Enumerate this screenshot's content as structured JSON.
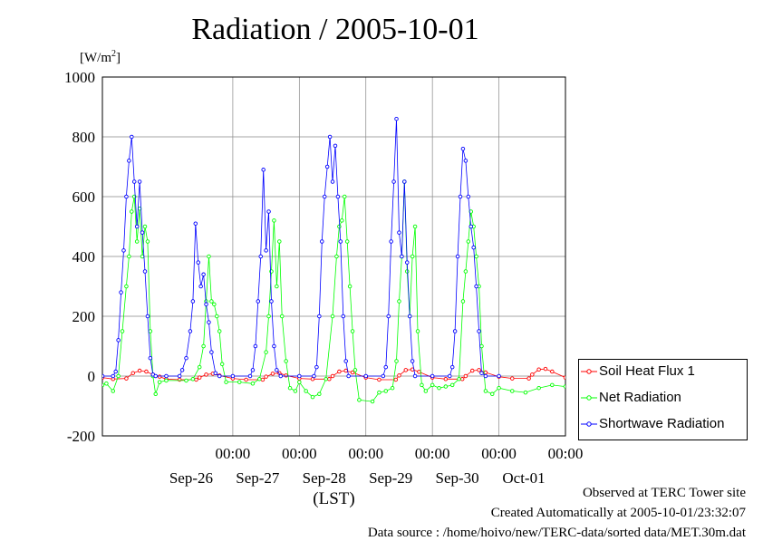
{
  "header": {
    "title": "Radiation / 2005-10-01",
    "unit_prefix": "[W/m",
    "unit_power": "2",
    "unit_suffix": "]"
  },
  "footer": {
    "line1": "Observed at TERC Tower site",
    "line2": "Created Automatically at 2005-10-01/23:32:07",
    "line3": "Data source : /home/hoivo/new/TERC-data/sorted  data/MET.30m.dat"
  },
  "legend": {
    "items": [
      {
        "label": "Soil Heat Flux 1",
        "color": "#ff0000"
      },
      {
        "label": "Net Radiation",
        "color": "#00ff00"
      },
      {
        "label": "Shortwave Radiation",
        "color": "#0000ff"
      }
    ]
  },
  "chart_data": {
    "type": "line",
    "title": "Radiation / 2005-10-01",
    "xlabel": "(LST)",
    "ylabel": "[W/m2]",
    "ylim": [
      -200,
      1000
    ],
    "yticks": [
      -200,
      0,
      200,
      400,
      600,
      800,
      1000
    ],
    "xlim": [
      -0.96,
      6.0
    ],
    "xtick_time_label": "00:00",
    "xticks": [
      {
        "x": 1,
        "time": "00:00",
        "date": "Sep-26"
      },
      {
        "x": 2,
        "time": "00:00",
        "date": "Sep-27"
      },
      {
        "x": 3,
        "time": "00:00",
        "date": "Sep-28"
      },
      {
        "x": 4,
        "time": "00:00",
        "date": "Sep-29"
      },
      {
        "x": 5,
        "time": "00:00",
        "date": "Sep-30"
      },
      {
        "x": 6,
        "time": "00:00",
        "date": "Oct-01"
      }
    ],
    "grid": true,
    "legend_position": "bottom-right",
    "series": [
      {
        "name": "Soil Heat Flux 1",
        "color": "#ff0000",
        "points": [
          [
            -0.96,
            -5
          ],
          [
            -0.8,
            -10
          ],
          [
            -0.6,
            -8
          ],
          [
            -0.5,
            10
          ],
          [
            -0.4,
            18
          ],
          [
            -0.3,
            15
          ],
          [
            -0.2,
            5
          ],
          [
            -0.1,
            -2
          ],
          [
            0.0,
            -10
          ],
          [
            0.2,
            -12
          ],
          [
            0.45,
            -12
          ],
          [
            0.5,
            -5
          ],
          [
            0.6,
            5
          ],
          [
            0.7,
            8
          ],
          [
            0.8,
            2
          ],
          [
            1.0,
            -8
          ],
          [
            1.2,
            -12
          ],
          [
            1.45,
            -12
          ],
          [
            1.5,
            -2
          ],
          [
            1.6,
            8
          ],
          [
            1.7,
            10
          ],
          [
            1.8,
            2
          ],
          [
            2.0,
            -8
          ],
          [
            2.2,
            -10
          ],
          [
            2.45,
            -10
          ],
          [
            2.5,
            0
          ],
          [
            2.6,
            15
          ],
          [
            2.7,
            18
          ],
          [
            2.8,
            12
          ],
          [
            3.0,
            -5
          ],
          [
            3.2,
            -12
          ],
          [
            3.45,
            -12
          ],
          [
            3.5,
            2
          ],
          [
            3.6,
            20
          ],
          [
            3.7,
            22
          ],
          [
            3.8,
            14
          ],
          [
            4.0,
            -5
          ],
          [
            4.2,
            -10
          ],
          [
            4.45,
            -10
          ],
          [
            4.5,
            0
          ],
          [
            4.6,
            18
          ],
          [
            4.7,
            20
          ],
          [
            4.8,
            12
          ],
          [
            5.0,
            -2
          ],
          [
            5.2,
            -8
          ],
          [
            5.45,
            -8
          ],
          [
            5.5,
            5
          ],
          [
            5.6,
            22
          ],
          [
            5.7,
            24
          ],
          [
            5.8,
            15
          ],
          [
            6.0,
            -5
          ]
        ]
      },
      {
        "name": "Net Radiation",
        "color": "#00ff00",
        "points": [
          [
            -0.96,
            -30
          ],
          [
            -0.9,
            -25
          ],
          [
            -0.8,
            -50
          ],
          [
            -0.72,
            0
          ],
          [
            -0.66,
            150
          ],
          [
            -0.6,
            300
          ],
          [
            -0.56,
            400
          ],
          [
            -0.52,
            550
          ],
          [
            -0.48,
            600
          ],
          [
            -0.44,
            450
          ],
          [
            -0.4,
            560
          ],
          [
            -0.36,
            400
          ],
          [
            -0.32,
            500
          ],
          [
            -0.28,
            450
          ],
          [
            -0.24,
            150
          ],
          [
            -0.2,
            0
          ],
          [
            -0.16,
            -60
          ],
          [
            -0.1,
            -20
          ],
          [
            0.0,
            -15
          ],
          [
            0.3,
            -15
          ],
          [
            0.4,
            -10
          ],
          [
            0.5,
            30
          ],
          [
            0.56,
            100
          ],
          [
            0.6,
            250
          ],
          [
            0.64,
            400
          ],
          [
            0.68,
            250
          ],
          [
            0.72,
            240
          ],
          [
            0.76,
            200
          ],
          [
            0.8,
            150
          ],
          [
            0.84,
            40
          ],
          [
            0.9,
            -20
          ],
          [
            1.1,
            -20
          ],
          [
            1.3,
            -25
          ],
          [
            1.4,
            -10
          ],
          [
            1.5,
            80
          ],
          [
            1.54,
            200
          ],
          [
            1.58,
            350
          ],
          [
            1.62,
            520
          ],
          [
            1.66,
            300
          ],
          [
            1.7,
            450
          ],
          [
            1.74,
            200
          ],
          [
            1.8,
            50
          ],
          [
            1.86,
            -40
          ],
          [
            1.94,
            -50
          ],
          [
            2.0,
            -20
          ],
          [
            2.1,
            -50
          ],
          [
            2.2,
            -70
          ],
          [
            2.3,
            -60
          ],
          [
            2.4,
            -10
          ],
          [
            2.5,
            200
          ],
          [
            2.56,
            400
          ],
          [
            2.6,
            500
          ],
          [
            2.64,
            520
          ],
          [
            2.68,
            600
          ],
          [
            2.72,
            450
          ],
          [
            2.76,
            300
          ],
          [
            2.8,
            150
          ],
          [
            2.84,
            20
          ],
          [
            2.9,
            -80
          ],
          [
            3.1,
            -85
          ],
          [
            3.2,
            -55
          ],
          [
            3.3,
            -50
          ],
          [
            3.4,
            -40
          ],
          [
            3.46,
            50
          ],
          [
            3.5,
            250
          ],
          [
            3.54,
            400
          ],
          [
            3.58,
            650
          ],
          [
            3.62,
            350
          ],
          [
            3.66,
            200
          ],
          [
            3.7,
            400
          ],
          [
            3.74,
            500
          ],
          [
            3.78,
            150
          ],
          [
            3.84,
            -30
          ],
          [
            3.9,
            -50
          ],
          [
            4.0,
            -30
          ],
          [
            4.1,
            -40
          ],
          [
            4.2,
            -35
          ],
          [
            4.3,
            -30
          ],
          [
            4.4,
            -10
          ],
          [
            4.46,
            250
          ],
          [
            4.5,
            350
          ],
          [
            4.54,
            450
          ],
          [
            4.58,
            550
          ],
          [
            4.62,
            500
          ],
          [
            4.66,
            400
          ],
          [
            4.7,
            300
          ],
          [
            4.74,
            100
          ],
          [
            4.8,
            -50
          ],
          [
            4.9,
            -60
          ],
          [
            5.0,
            -40
          ],
          [
            5.2,
            -50
          ],
          [
            5.4,
            -55
          ],
          [
            5.6,
            -40
          ],
          [
            5.8,
            -30
          ],
          [
            6.0,
            -35
          ]
        ]
      },
      {
        "name": "Shortwave Radiation",
        "color": "#0000ff",
        "points": [
          [
            -0.96,
            0
          ],
          [
            -0.8,
            0
          ],
          [
            -0.76,
            15
          ],
          [
            -0.72,
            120
          ],
          [
            -0.68,
            280
          ],
          [
            -0.64,
            420
          ],
          [
            -0.6,
            600
          ],
          [
            -0.56,
            720
          ],
          [
            -0.52,
            800
          ],
          [
            -0.48,
            650
          ],
          [
            -0.44,
            500
          ],
          [
            -0.4,
            650
          ],
          [
            -0.36,
            480
          ],
          [
            -0.32,
            350
          ],
          [
            -0.28,
            200
          ],
          [
            -0.24,
            60
          ],
          [
            -0.2,
            5
          ],
          [
            -0.16,
            0
          ],
          [
            0.0,
            0
          ],
          [
            0.2,
            0
          ],
          [
            0.24,
            20
          ],
          [
            0.3,
            60
          ],
          [
            0.36,
            150
          ],
          [
            0.4,
            250
          ],
          [
            0.44,
            510
          ],
          [
            0.48,
            380
          ],
          [
            0.52,
            300
          ],
          [
            0.56,
            340
          ],
          [
            0.6,
            240
          ],
          [
            0.64,
            180
          ],
          [
            0.68,
            80
          ],
          [
            0.74,
            10
          ],
          [
            0.8,
            0
          ],
          [
            1.0,
            0
          ],
          [
            1.26,
            0
          ],
          [
            1.3,
            20
          ],
          [
            1.34,
            100
          ],
          [
            1.38,
            250
          ],
          [
            1.42,
            400
          ],
          [
            1.46,
            690
          ],
          [
            1.5,
            420
          ],
          [
            1.54,
            550
          ],
          [
            1.58,
            250
          ],
          [
            1.62,
            100
          ],
          [
            1.66,
            20
          ],
          [
            1.72,
            0
          ],
          [
            2.0,
            0
          ],
          [
            2.22,
            0
          ],
          [
            2.26,
            30
          ],
          [
            2.3,
            200
          ],
          [
            2.34,
            450
          ],
          [
            2.38,
            600
          ],
          [
            2.42,
            700
          ],
          [
            2.46,
            800
          ],
          [
            2.5,
            650
          ],
          [
            2.54,
            770
          ],
          [
            2.58,
            600
          ],
          [
            2.62,
            450
          ],
          [
            2.66,
            200
          ],
          [
            2.7,
            50
          ],
          [
            2.74,
            0
          ],
          [
            3.0,
            0
          ],
          [
            3.26,
            0
          ],
          [
            3.3,
            30
          ],
          [
            3.34,
            200
          ],
          [
            3.38,
            450
          ],
          [
            3.42,
            650
          ],
          [
            3.46,
            860
          ],
          [
            3.5,
            480
          ],
          [
            3.54,
            400
          ],
          [
            3.58,
            650
          ],
          [
            3.62,
            380
          ],
          [
            3.66,
            200
          ],
          [
            3.7,
            50
          ],
          [
            3.74,
            0
          ],
          [
            4.0,
            0
          ],
          [
            4.26,
            0
          ],
          [
            4.3,
            30
          ],
          [
            4.34,
            150
          ],
          [
            4.38,
            400
          ],
          [
            4.42,
            600
          ],
          [
            4.46,
            760
          ],
          [
            4.5,
            720
          ],
          [
            4.54,
            600
          ],
          [
            4.58,
            500
          ],
          [
            4.62,
            430
          ],
          [
            4.66,
            300
          ],
          [
            4.7,
            150
          ],
          [
            4.74,
            10
          ],
          [
            4.8,
            0
          ],
          [
            5.0,
            0
          ]
        ]
      }
    ]
  }
}
